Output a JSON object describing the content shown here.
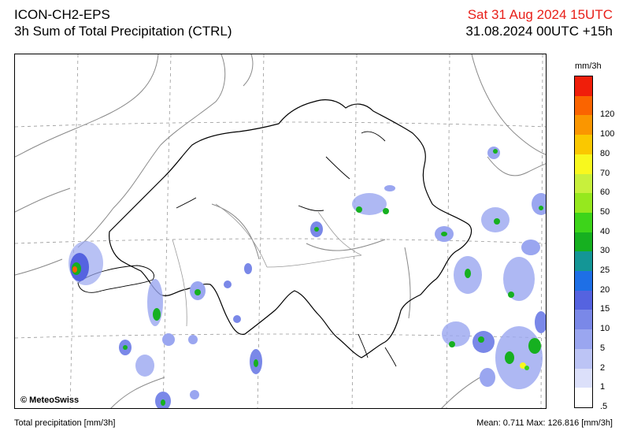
{
  "header": {
    "model": "ICON-CH2-EPS",
    "product": "3h Sum of Total Precipitation (CTRL)",
    "valid_time": "Sat 31 Aug 2024 15UTC",
    "run_time": "31.08.2024 00UTC +15h"
  },
  "map": {
    "copyright": "© MeteoSwiss"
  },
  "legend": {
    "unit": "mm/3h",
    "levels": [
      {
        "label": ".5",
        "color": "#ffffff"
      },
      {
        "label": "1",
        "color": "#dce0fa"
      },
      {
        "label": "2",
        "color": "#bcc4f5"
      },
      {
        "label": "5",
        "color": "#9aa6f0"
      },
      {
        "label": "10",
        "color": "#7a88e8"
      },
      {
        "label": "15",
        "color": "#5563e0"
      },
      {
        "label": "20",
        "color": "#1e6fe6"
      },
      {
        "label": "25",
        "color": "#149696"
      },
      {
        "label": "30",
        "color": "#16b020"
      },
      {
        "label": "40",
        "color": "#3dd41a"
      },
      {
        "label": "50",
        "color": "#96e81e"
      },
      {
        "label": "60",
        "color": "#c8f03c"
      },
      {
        "label": "70",
        "color": "#f8f81e"
      },
      {
        "label": "80",
        "color": "#fac800"
      },
      {
        "label": "100",
        "color": "#fa9600"
      },
      {
        "label": "120",
        "color": "#fa6400"
      },
      {
        "label": "",
        "color": "#f01e0a"
      }
    ]
  },
  "footer": {
    "left": "Total precipitation [mm/3h]",
    "right": "Mean:   0.711 Max: 126.816 [mm/3h]"
  }
}
